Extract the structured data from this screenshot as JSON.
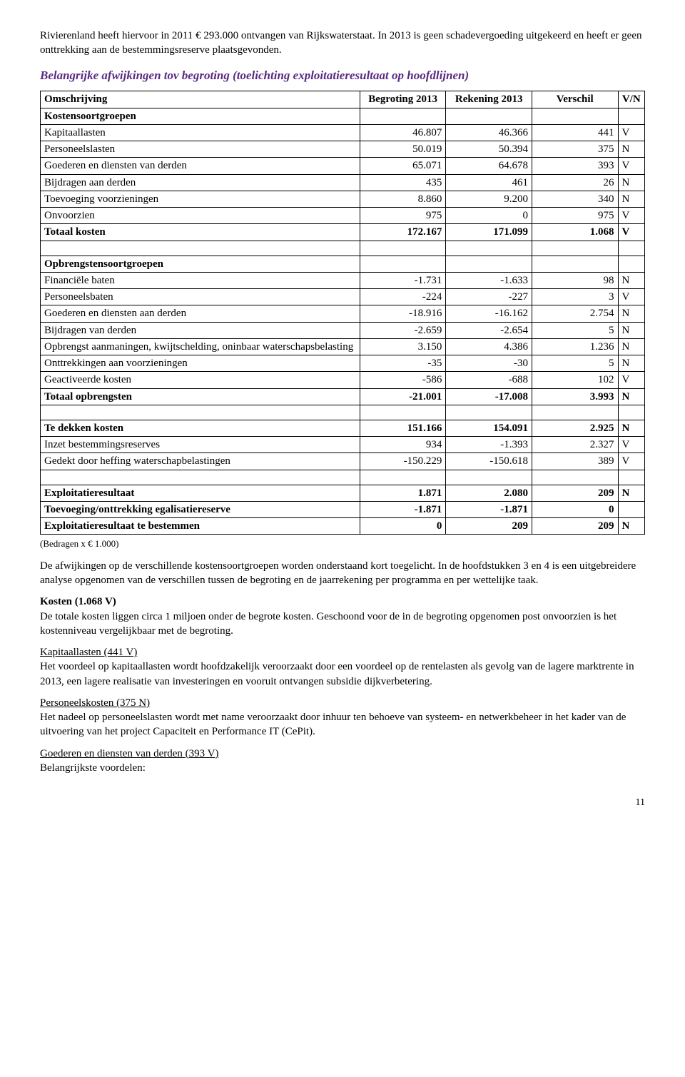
{
  "intro": {
    "p1": "Rivierenland heeft hiervoor in 2011 € 293.000 ontvangen van Rijkswaterstaat. In 2013 is geen schadevergoeding uitgekeerd en heeft er geen onttrekking aan de bestemmingsreserve plaatsgevonden."
  },
  "sectionHeading": "Belangrijke afwijkingen tov begroting (toelichting exploitatieresultaat op hoofdlijnen)",
  "table": {
    "headers": {
      "omschrijving": "Omschrijving",
      "begroting": "Begroting 2013",
      "rekening": "Rekening 2013",
      "verschil": "Verschil",
      "vn": "V/N"
    },
    "group1Title": "Kostensoortgroepen",
    "group1": [
      {
        "label": "Kapitaallasten",
        "b": "46.807",
        "r": "46.366",
        "v": "441",
        "vn": "V"
      },
      {
        "label": "Personeelslasten",
        "b": "50.019",
        "r": "50.394",
        "v": "375",
        "vn": "N"
      },
      {
        "label": "Goederen en diensten van derden",
        "b": "65.071",
        "r": "64.678",
        "v": "393",
        "vn": "V"
      },
      {
        "label": "Bijdragen aan derden",
        "b": "435",
        "r": "461",
        "v": "26",
        "vn": "N"
      },
      {
        "label": "Toevoeging voorzieningen",
        "b": "8.860",
        "r": "9.200",
        "v": "340",
        "vn": "N"
      },
      {
        "label": "Onvoorzien",
        "b": "975",
        "r": "0",
        "v": "975",
        "vn": "V"
      }
    ],
    "group1Total": {
      "label": "Totaal kosten",
      "b": "172.167",
      "r": "171.099",
      "v": "1.068",
      "vn": "V"
    },
    "group2Title": "Opbrengstensoortgroepen",
    "group2": [
      {
        "label": "Financiële baten",
        "b": "-1.731",
        "r": "-1.633",
        "v": "98",
        "vn": "N"
      },
      {
        "label": "Personeelsbaten",
        "b": "-224",
        "r": "-227",
        "v": "3",
        "vn": "V"
      },
      {
        "label": "Goederen en diensten aan derden",
        "b": "-18.916",
        "r": "-16.162",
        "v": "2.754",
        "vn": "N"
      },
      {
        "label": "Bijdragen van derden",
        "b": "-2.659",
        "r": "-2.654",
        "v": "5",
        "vn": "N"
      },
      {
        "label": "Opbrengst aanmaningen, kwijtschelding, oninbaar waterschapsbelasting",
        "b": "3.150",
        "r": "4.386",
        "v": "1.236",
        "vn": "N"
      },
      {
        "label": "Onttrekkingen aan voorzieningen",
        "b": "-35",
        "r": "-30",
        "v": "5",
        "vn": "N"
      },
      {
        "label": "Geactiveerde kosten",
        "b": "-586",
        "r": "-688",
        "v": "102",
        "vn": "V"
      }
    ],
    "group2Total": {
      "label": "Totaal opbrengsten",
      "b": "-21.001",
      "r": "-17.008",
      "v": "3.993",
      "vn": "N"
    },
    "group3": [
      {
        "label": "Te dekken kosten",
        "b": "151.166",
        "r": "154.091",
        "v": "2.925",
        "vn": "N",
        "bold": true
      },
      {
        "label": "Inzet bestemmingsreserves",
        "b": "934",
        "r": "-1.393",
        "v": "2.327",
        "vn": "V"
      },
      {
        "label": "Gedekt door heffing waterschapbelastingen",
        "b": "-150.229",
        "r": "-150.618",
        "v": "389",
        "vn": "V"
      }
    ],
    "group4": [
      {
        "label": "Exploitatieresultaat",
        "b": "1.871",
        "r": "2.080",
        "v": "209",
        "vn": "N",
        "bold": true
      },
      {
        "label": "Toevoeging/onttrekking egalisatiereserve",
        "b": "-1.871",
        "r": "-1.871",
        "v": "0",
        "vn": "",
        "bold": true
      },
      {
        "label": "Exploitatieresultaat te bestemmen",
        "b": "0",
        "r": "209",
        "v": "209",
        "vn": "N",
        "bold": true
      }
    ],
    "caption": "(Bedragen x € 1.000)"
  },
  "body": {
    "p1": "De afwijkingen op de verschillende kostensoortgroepen worden onderstaand kort toegelicht. In de hoofdstukken 3 en 4 is een uitgebreidere analyse opgenomen van de verschillen tussen de begroting en de jaarrekening per programma en per wettelijke taak.",
    "h1": "Kosten (1.068 V)",
    "p2": "De totale kosten liggen circa 1 miljoen onder de begrote kosten. Geschoond voor de in de begroting opgenomen post onvoorzien is het kostenniveau vergelijkbaar met de begroting.",
    "h2": "Kapitaallasten (441 V)",
    "p3": "Het voordeel op kapitaallasten wordt hoofdzakelijk veroorzaakt door een voordeel op de rentelasten als gevolg van de lagere marktrente in 2013, een lagere realisatie van investeringen en vooruit ontvangen subsidie dijkverbetering.",
    "h3": "Personeelskosten (375 N)",
    "p4": "Het nadeel op personeelslasten wordt met name veroorzaakt door inhuur ten behoeve van systeem- en netwerkbeheer in het kader van de uitvoering van het project Capaciteit en Performance IT (CePit).",
    "h4": "Goederen en diensten van derden (393 V)",
    "p5": "Belangrijkste voordelen:"
  },
  "pageNumber": "11"
}
